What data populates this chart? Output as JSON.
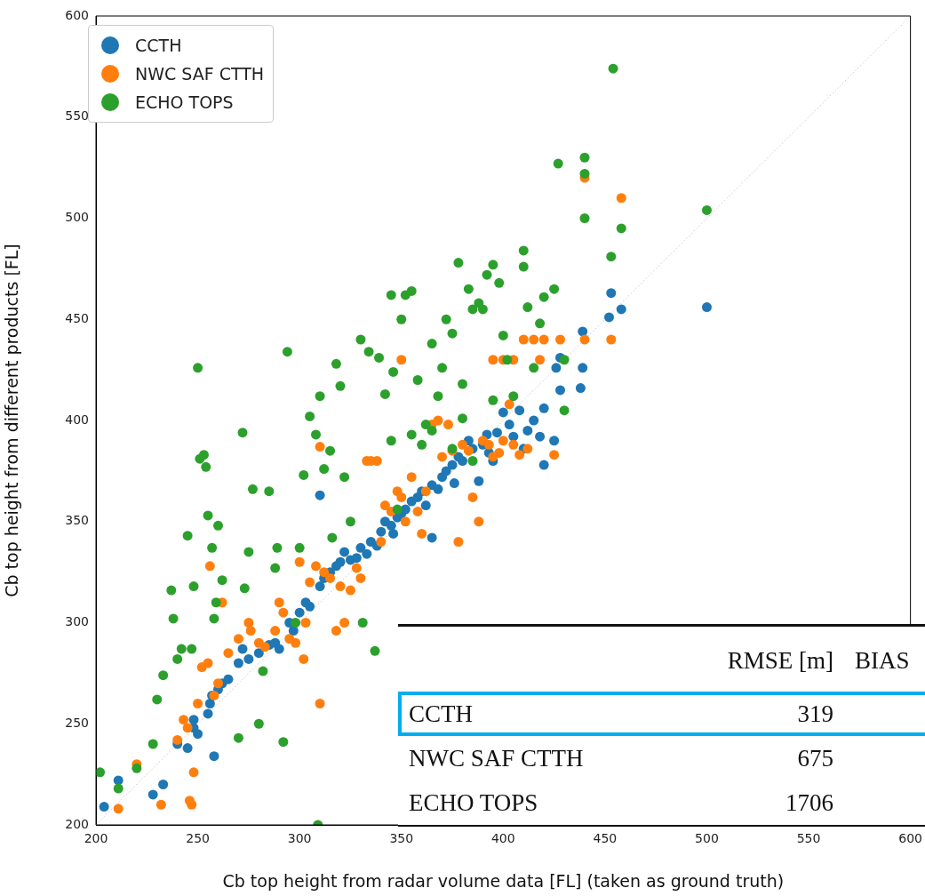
{
  "chart_data": {
    "type": "scatter",
    "xlabel": "Cb top height from radar volume data [FL] (taken as ground truth)",
    "ylabel": "Cb top height from different products [FL]",
    "xlim": [
      200,
      600
    ],
    "ylim": [
      200,
      600
    ],
    "xticks": [
      200,
      250,
      300,
      350,
      400,
      450,
      500,
      550,
      600
    ],
    "yticks": [
      200,
      250,
      300,
      350,
      400,
      450,
      500,
      550,
      600
    ],
    "legend": "top left",
    "grid": false,
    "marker": "circle",
    "annotations": [
      "RMSE [m]",
      "BIAS",
      "CCTH",
      "319",
      "NWC SAF CTTH",
      "675",
      "ECHO TOPS",
      "1706"
    ],
    "series": [
      {
        "type": "line",
        "color": "#c8c8c8",
        "line_style": "dotted",
        "marker": "none",
        "x": [
          200,
          600
        ],
        "values": [
          200,
          600
        ]
      },
      {
        "name": "CCTH",
        "color": "#1f77b4",
        "x": [
          204,
          211,
          228,
          233,
          240,
          245,
          248,
          248,
          250,
          255,
          256,
          258,
          257,
          260,
          262,
          265,
          270,
          272,
          275,
          280,
          285,
          288,
          290,
          295,
          297,
          300,
          303,
          305,
          310,
          312,
          315,
          318,
          320,
          322,
          325,
          328,
          330,
          333,
          335,
          338,
          340,
          342,
          345,
          348,
          350,
          352,
          355,
          358,
          360,
          362,
          365,
          368,
          370,
          372,
          375,
          378,
          380,
          383,
          385,
          388,
          390,
          392,
          395,
          397,
          400,
          403,
          405,
          408,
          410,
          412,
          415,
          418,
          420,
          420,
          425,
          426,
          428,
          428,
          438,
          439,
          439,
          452,
          453,
          458,
          500,
          310,
          346,
          365,
          376,
          393
        ],
        "values": [
          209,
          222,
          215,
          220,
          240,
          238,
          248,
          252,
          245,
          255,
          260,
          234,
          264,
          267,
          270,
          272,
          280,
          287,
          282,
          285,
          289,
          290,
          287,
          300,
          296,
          305,
          310,
          308,
          318,
          322,
          325,
          328,
          330,
          335,
          331,
          332,
          337,
          334,
          340,
          338,
          345,
          350,
          348,
          352,
          354,
          356,
          360,
          362,
          365,
          358,
          368,
          366,
          372,
          375,
          378,
          382,
          380,
          390,
          386,
          370,
          388,
          393,
          380,
          394,
          404,
          398,
          392,
          405,
          386,
          395,
          400,
          392,
          378,
          406,
          390,
          426,
          431,
          415,
          416,
          426,
          444,
          451,
          463,
          455,
          456,
          363,
          344,
          342,
          369,
          384
        ]
      },
      {
        "name": "NWC SAF CTTH",
        "color": "#ff7f0e",
        "x": [
          211,
          220,
          232,
          240,
          245,
          246,
          248,
          247,
          243,
          250,
          252,
          255,
          256,
          258,
          260,
          262,
          265,
          270,
          275,
          276,
          280,
          283,
          288,
          290,
          292,
          295,
          298,
          300,
          302,
          303,
          305,
          308,
          310,
          310,
          312,
          315,
          318,
          320,
          322,
          325,
          328,
          330,
          333,
          335,
          338,
          340,
          342,
          345,
          348,
          350,
          352,
          355,
          358,
          360,
          362,
          365,
          368,
          370,
          373,
          375,
          378,
          380,
          383,
          385,
          388,
          390,
          393,
          395,
          398,
          400,
          403,
          405,
          408,
          410,
          412,
          415,
          418,
          420,
          425,
          428,
          440,
          440,
          453,
          458,
          350,
          395,
          400,
          405
        ],
        "values": [
          208,
          230,
          210,
          242,
          248,
          212,
          226,
          210,
          252,
          260,
          278,
          280,
          328,
          264,
          270,
          310,
          285,
          292,
          300,
          296,
          290,
          288,
          296,
          310,
          305,
          292,
          290,
          330,
          282,
          300,
          320,
          328,
          260,
          387,
          325,
          322,
          296,
          318,
          300,
          316,
          327,
          322,
          380,
          380,
          380,
          340,
          358,
          355,
          365,
          362,
          350,
          372,
          355,
          344,
          365,
          398,
          400,
          382,
          398,
          385,
          340,
          388,
          385,
          362,
          350,
          390,
          388,
          382,
          384,
          390,
          408,
          388,
          383,
          440,
          386,
          440,
          430,
          440,
          383,
          440,
          520,
          440,
          440,
          510,
          430,
          430,
          430,
          430
        ]
      },
      {
        "name": "ECHO TOPS",
        "color": "#2ca02c",
        "x": [
          202,
          211,
          220,
          228,
          230,
          233,
          237,
          238,
          240,
          242,
          245,
          247,
          248,
          250,
          251,
          253,
          254,
          255,
          257,
          258,
          259,
          260,
          262,
          270,
          272,
          273,
          275,
          277,
          280,
          282,
          285,
          288,
          289,
          292,
          294,
          298,
          300,
          302,
          305,
          308,
          309,
          310,
          312,
          315,
          316,
          318,
          320,
          322,
          325,
          330,
          331,
          334,
          337,
          339,
          342,
          345,
          346,
          348,
          350,
          352,
          355,
          358,
          360,
          362,
          365,
          368,
          370,
          372,
          375,
          378,
          380,
          383,
          385,
          388,
          390,
          392,
          395,
          398,
          400,
          402,
          405,
          410,
          410,
          412,
          415,
          418,
          420,
          425,
          427,
          430,
          430,
          440,
          440,
          440,
          453,
          454,
          458,
          500,
          395,
          375,
          385,
          345,
          355,
          365,
          380
        ],
        "values": [
          226,
          218,
          228,
          240,
          262,
          274,
          316,
          302,
          282,
          287,
          343,
          287,
          318,
          426,
          381,
          383,
          377,
          353,
          337,
          302,
          310,
          348,
          321,
          243,
          394,
          317,
          335,
          366,
          250,
          276,
          365,
          327,
          337,
          241,
          434,
          300,
          337,
          373,
          402,
          393,
          200,
          412,
          376,
          385,
          342,
          428,
          417,
          372,
          350,
          440,
          300,
          434,
          286,
          431,
          413,
          462,
          424,
          356,
          450,
          462,
          464,
          420,
          388,
          398,
          438,
          412,
          426,
          450,
          443,
          478,
          418,
          465,
          455,
          458,
          455,
          472,
          477,
          468,
          442,
          430,
          412,
          484,
          476,
          456,
          426,
          448,
          461,
          465,
          527,
          430,
          405,
          530,
          500,
          522,
          481,
          574,
          495,
          504,
          410,
          386,
          380,
          390,
          393,
          395,
          401
        ]
      }
    ]
  }
}
